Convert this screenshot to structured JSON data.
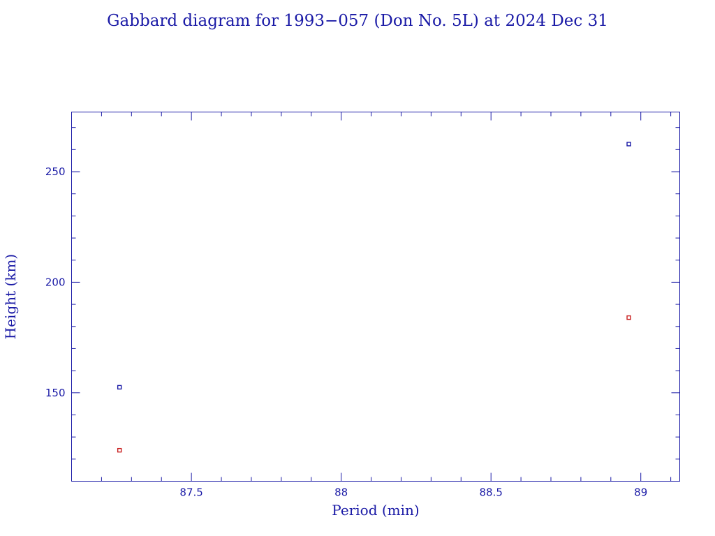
{
  "chart_data": {
    "type": "scatter",
    "title": "Gabbard diagram for 1993−057 (Don No. 5L) at 2024 Dec 31",
    "xlabel": "Period (min)",
    "ylabel": "Height (km)",
    "xlim": [
      87.1,
      89.13
    ],
    "ylim": [
      110,
      277
    ],
    "x_ticks": [
      {
        "value": 87.5,
        "label": "87.5"
      },
      {
        "value": 88,
        "label": "88"
      },
      {
        "value": 88.5,
        "label": "88.5"
      },
      {
        "value": 89,
        "label": "89"
      }
    ],
    "x_minor_step": 0.1,
    "y_ticks": [
      {
        "value": 150,
        "label": "150"
      },
      {
        "value": 200,
        "label": "200"
      },
      {
        "value": 250,
        "label": "250"
      }
    ],
    "y_minor_step": 10,
    "grid": false,
    "series": [
      {
        "color": "#1a1aa6",
        "points": [
          {
            "x": 87.26,
            "y": 152.5
          },
          {
            "x": 88.96,
            "y": 262.5
          }
        ]
      },
      {
        "color": "#c81e1e",
        "points": [
          {
            "x": 87.26,
            "y": 124
          },
          {
            "x": 88.96,
            "y": 184
          }
        ]
      }
    ]
  }
}
